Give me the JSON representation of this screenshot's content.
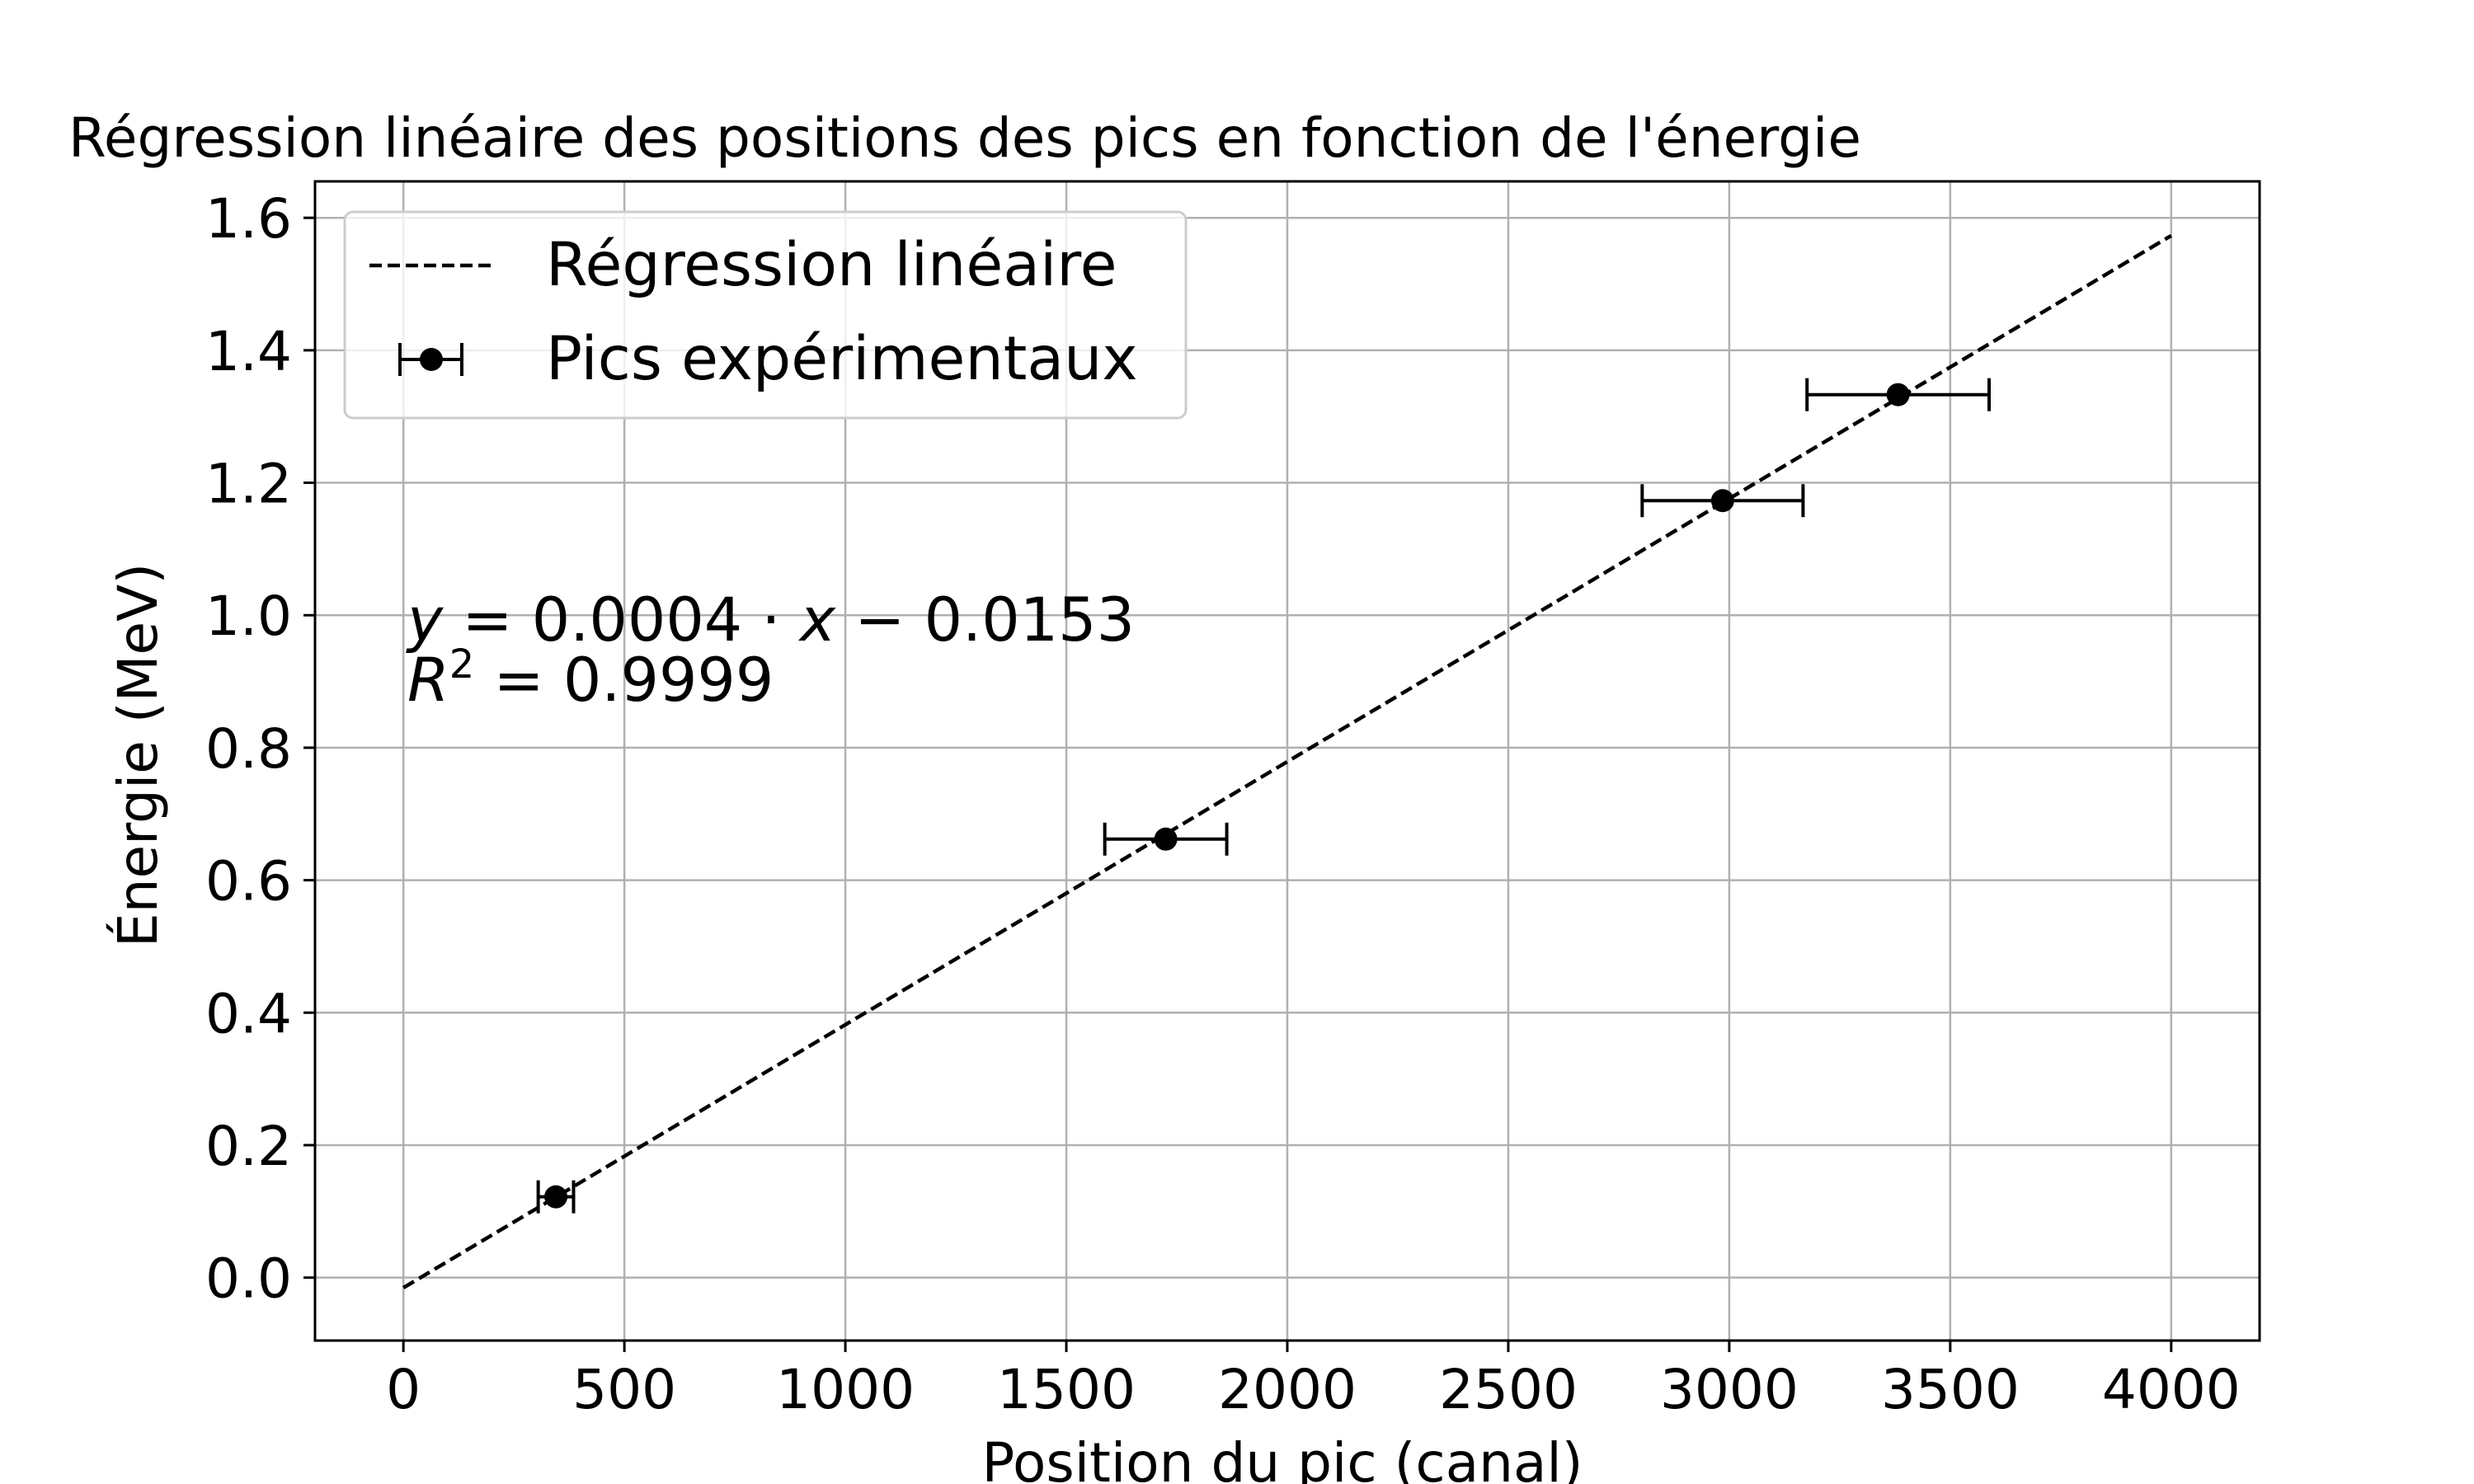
{
  "chart_data": {
    "type": "scatter",
    "title": "Régression linéaire des positions des pics en fonction de l'énergie",
    "xlabel": "Position du pic (canal)",
    "ylabel": "Énergie (MeV)",
    "xlim": [
      -200,
      4200
    ],
    "ylim": [
      -0.095,
      1.655
    ],
    "xticks": [
      0,
      500,
      1000,
      1500,
      2000,
      2500,
      3000,
      3500,
      4000
    ],
    "yticks": [
      0.0,
      0.2,
      0.4,
      0.6,
      0.8,
      1.0,
      1.2,
      1.4,
      1.6
    ],
    "xtick_labels": [
      "0",
      "500",
      "1000",
      "1500",
      "2000",
      "2500",
      "3000",
      "3500",
      "4000"
    ],
    "ytick_labels": [
      "0.0",
      "0.2",
      "0.4",
      "0.6",
      "0.8",
      "1.0",
      "1.2",
      "1.4",
      "1.6"
    ],
    "grid": true,
    "legend_position": "top-left",
    "series": [
      {
        "name": "Régression linéaire",
        "kind": "line",
        "style": "dashed",
        "color": "#000000",
        "x": [
          0,
          4000
        ],
        "y": [
          -0.0153,
          1.5731
        ]
      },
      {
        "name": "Pics expérimentaux",
        "kind": "errorbar",
        "color": "#000000",
        "points": [
          {
            "x": 345,
            "y": 0.122,
            "xerr": 40
          },
          {
            "x": 1725,
            "y": 0.662,
            "xerr": 138
          },
          {
            "x": 2985,
            "y": 1.173,
            "xerr": 182
          },
          {
            "x": 3382,
            "y": 1.333,
            "xerr": 206
          }
        ]
      }
    ],
    "annotation": {
      "line1": "y = 0.0004 · x − 0.0153",
      "line1_y": "y",
      "line1_eq": " = 0.0004 · ",
      "line1_x": "x",
      "line1_rest": " − 0.0153",
      "line2_R": "R",
      "line2_sup": "2",
      "line2_rest": " = 0.9999"
    }
  }
}
